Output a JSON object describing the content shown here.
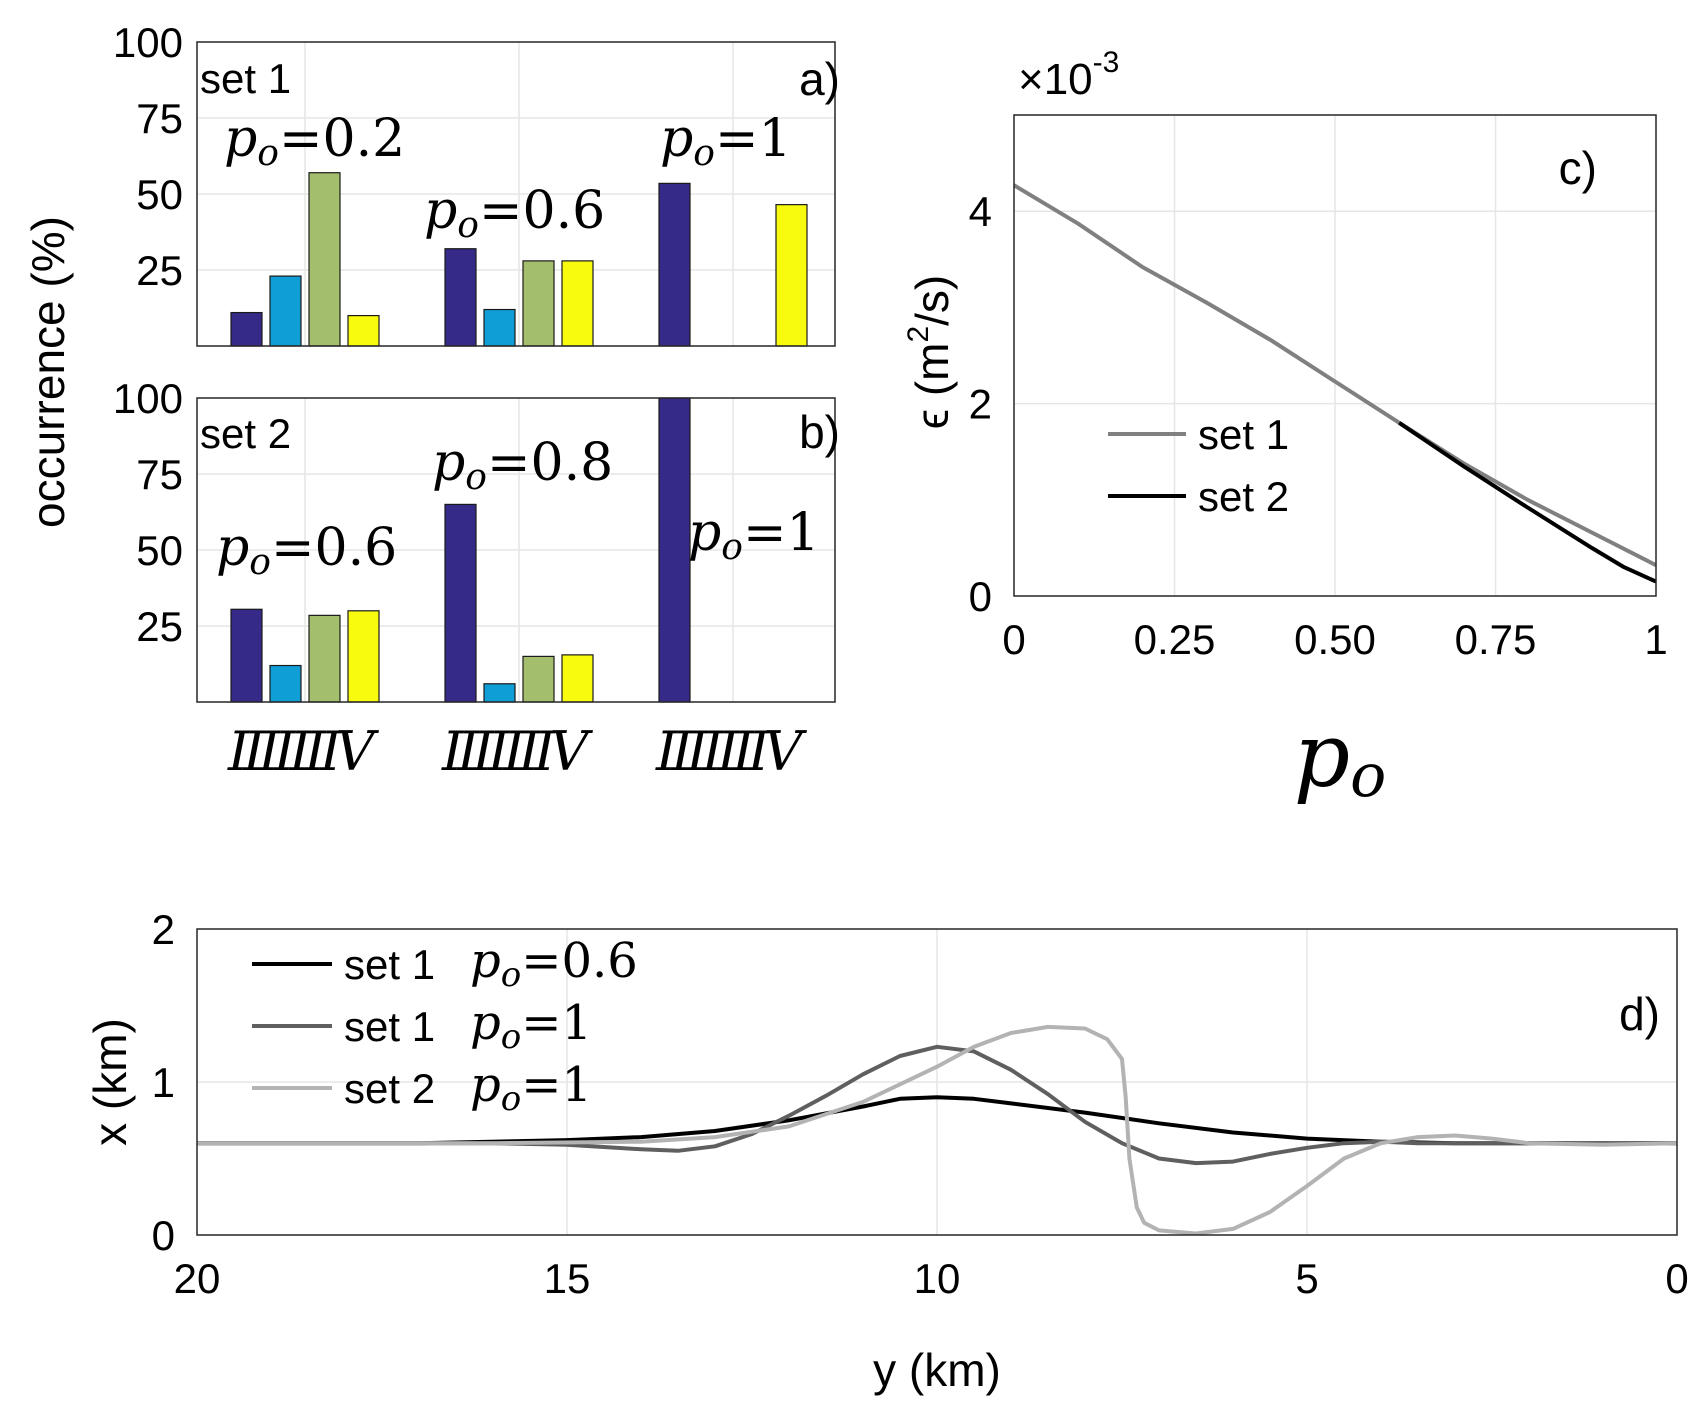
{
  "chart_data": [
    {
      "id": "a",
      "type": "bar",
      "panel_label": "a)",
      "set_label": "set 1",
      "ylabel": "occurrence (%)",
      "ylim": [
        0,
        100
      ],
      "yticks": [
        "25",
        "50",
        "75",
        "100"
      ],
      "groups": [
        {
          "annotation": "=0.2",
          "values": [
            11,
            23,
            57,
            10
          ]
        },
        {
          "annotation": "=0.6",
          "values": [
            32,
            12,
            28,
            28
          ]
        },
        {
          "annotation": "=1",
          "values": [
            53.5,
            0,
            0,
            46.5
          ]
        }
      ],
      "series_colors": [
        "#352a87",
        "#0f9fd6",
        "#a3bf6e",
        "#f9fb0e"
      ]
    },
    {
      "id": "b",
      "type": "bar",
      "panel_label": "b)",
      "set_label": "set 2",
      "ylim": [
        0,
        100
      ],
      "yticks": [
        "25",
        "50",
        "75",
        "100"
      ],
      "groups": [
        {
          "annotation": "=0.6",
          "values": [
            30.5,
            12,
            28.5,
            30
          ]
        },
        {
          "annotation": "=0.8",
          "values": [
            65,
            6,
            15,
            15.5
          ]
        },
        {
          "annotation": "=1",
          "values": [
            100,
            0,
            0,
            0
          ]
        }
      ],
      "category_labels": [
        "I",
        "II",
        "III",
        "IV"
      ],
      "series_colors": [
        "#352a87",
        "#0f9fd6",
        "#a3bf6e",
        "#f9fb0e"
      ]
    },
    {
      "id": "c",
      "type": "line",
      "panel_label": "c)",
      "ylabel_prefix": "ϵ (m",
      "ylabel_sup": "2",
      "ylabel_suffix": "/s)",
      "exponent_base": "×10",
      "exponent_power": "-3",
      "xlim": [
        0,
        1
      ],
      "ylim": [
        0,
        5
      ],
      "xticks": [
        "0",
        "0.25",
        "0.50",
        "0.75",
        "1"
      ],
      "yticks": [
        "0",
        "2",
        "4"
      ],
      "series": [
        {
          "name": "set 1",
          "color": "#808080",
          "x": [
            0,
            0.1,
            0.2,
            0.3,
            0.4,
            0.5,
            0.6,
            0.7,
            0.8,
            0.9,
            1.0
          ],
          "y": [
            4.27,
            3.87,
            3.42,
            3.05,
            2.66,
            2.23,
            1.8,
            1.38,
            1.0,
            0.66,
            0.32
          ]
        },
        {
          "name": "set 2",
          "color": "#000000",
          "x": [
            0.6,
            0.7,
            0.8,
            0.9,
            0.95,
            1.0
          ],
          "y": [
            1.8,
            1.35,
            0.92,
            0.5,
            0.3,
            0.15
          ]
        }
      ]
    },
    {
      "id": "d",
      "type": "line",
      "panel_label": "d)",
      "xlabel": "y (km)",
      "ylabel": "x (km)",
      "xlim": [
        20,
        0
      ],
      "ylim": [
        0,
        2
      ],
      "xticks": [
        "20",
        "15",
        "10",
        "5",
        "0"
      ],
      "yticks": [
        "0",
        "1",
        "2"
      ],
      "series": [
        {
          "name": "set 1",
          "annotation": "=0.6",
          "color": "#000000",
          "x": [
            20,
            17,
            15,
            14,
            13,
            12,
            11,
            10.5,
            10,
            9.5,
            9,
            8,
            7,
            6,
            5,
            4,
            3,
            2,
            1,
            0
          ],
          "y": [
            0.6,
            0.6,
            0.62,
            0.64,
            0.68,
            0.75,
            0.84,
            0.89,
            0.9,
            0.89,
            0.86,
            0.8,
            0.73,
            0.67,
            0.63,
            0.61,
            0.6,
            0.6,
            0.6,
            0.6
          ]
        },
        {
          "name": "set 1",
          "annotation": "=1",
          "color": "#5f5f5f",
          "x": [
            20,
            16,
            15,
            14,
            13.5,
            13,
            12.5,
            12,
            11.5,
            11,
            10.5,
            10,
            9.5,
            9,
            8.5,
            8,
            7.5,
            7,
            6.5,
            6,
            5.5,
            5,
            4.5,
            4,
            3.5,
            3,
            2,
            1,
            0
          ],
          "y": [
            0.6,
            0.6,
            0.59,
            0.56,
            0.55,
            0.58,
            0.66,
            0.78,
            0.91,
            1.05,
            1.17,
            1.23,
            1.2,
            1.08,
            0.92,
            0.74,
            0.6,
            0.5,
            0.47,
            0.48,
            0.53,
            0.57,
            0.6,
            0.61,
            0.6,
            0.6,
            0.6,
            0.6,
            0.6
          ]
        },
        {
          "name": "set 2",
          "annotation": "=1",
          "color": "#b3b3b3",
          "x": [
            20,
            16,
            14,
            13,
            12,
            11,
            10,
            9.5,
            9,
            8.5,
            8,
            7.7,
            7.5,
            7.45,
            7.4,
            7.3,
            7.2,
            7.0,
            6.5,
            6.0,
            5.5,
            5.0,
            4.5,
            4.0,
            3.5,
            3.0,
            2.5,
            2.0,
            1.0,
            0
          ],
          "y": [
            0.6,
            0.6,
            0.61,
            0.64,
            0.71,
            0.87,
            1.1,
            1.23,
            1.32,
            1.36,
            1.35,
            1.28,
            1.15,
            0.9,
            0.5,
            0.18,
            0.08,
            0.03,
            0.01,
            0.04,
            0.15,
            0.32,
            0.5,
            0.6,
            0.64,
            0.65,
            0.63,
            0.6,
            0.59,
            0.6
          ]
        }
      ]
    }
  ],
  "x_symbol_base": "p",
  "x_symbol_sub": "o"
}
